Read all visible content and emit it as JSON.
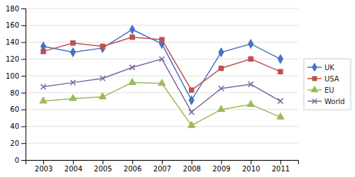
{
  "chart_data": {
    "type": "line",
    "x": [
      2003,
      2004,
      2005,
      2006,
      2007,
      2008,
      2009,
      2010,
      2011
    ],
    "xlim": [
      2002.4,
      2011.6
    ],
    "xticks": [
      2003,
      2004,
      2005,
      2006,
      2007,
      2008,
      2009,
      2010,
      2011
    ],
    "ylim": [
      0,
      180
    ],
    "yticks": [
      0,
      20,
      40,
      60,
      80,
      100,
      120,
      140,
      160,
      180
    ],
    "grid": true,
    "legend": "right",
    "series": [
      {
        "name": "UK",
        "color": "#4472C4",
        "marker": "diamond",
        "values": [
          135,
          128,
          133,
          155,
          138,
          71,
          128,
          138,
          120
        ]
      },
      {
        "name": "USA",
        "color": "#C0504D",
        "marker": "square",
        "values": [
          129,
          139,
          135,
          146,
          143,
          83,
          109,
          120,
          105
        ]
      },
      {
        "name": "EU",
        "color": "#9BBB59",
        "marker": "triangle",
        "values": [
          70,
          73,
          75,
          92,
          91,
          41,
          60,
          66,
          51
        ]
      },
      {
        "name": "World",
        "color": "#8064A2",
        "marker": "x",
        "values": [
          87,
          92,
          97,
          110,
          120,
          57,
          85,
          90,
          70
        ]
      }
    ]
  }
}
